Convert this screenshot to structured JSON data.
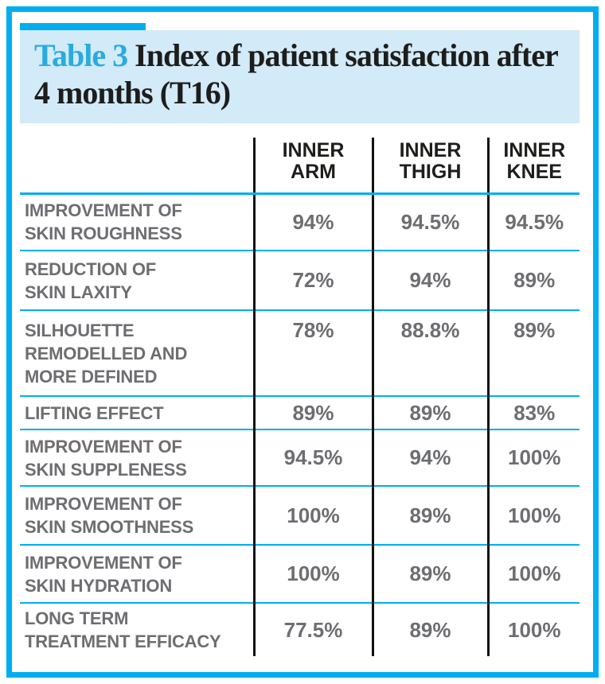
{
  "title": {
    "tag": "Table 3",
    "text": "Index of patient satisfaction after 4 months (T16)"
  },
  "colors": {
    "accent_cyan": "#00aeef",
    "title_text_cyan": "#29abe2",
    "title_background": "#d3eaf8",
    "header_text": "#1d1d1b",
    "body_text_gray": "#6d6e71",
    "column_rule_black": "#111111"
  },
  "table": {
    "columns": [
      "INNER\nARM",
      "INNER\nTHIGH",
      "INNER\nKNEE"
    ],
    "rows": [
      {
        "label": "IMPROVEMENT OF\nSKIN ROUGHNESS",
        "values": [
          "94%",
          "94.5%",
          "94.5%"
        ]
      },
      {
        "label": "REDUCTION OF\nSKIN LAXITY",
        "values": [
          "72%",
          "94%",
          "89%"
        ]
      },
      {
        "label": "SILHOUETTE\nREMODELLED AND\nMORE DEFINED",
        "values": [
          "78%",
          "88.8%",
          "89%"
        ]
      },
      {
        "label": "LIFTING EFFECT",
        "values": [
          "89%",
          "89%",
          "83%"
        ]
      },
      {
        "label": "IMPROVEMENT OF\nSKIN SUPPLENESS",
        "values": [
          "94.5%",
          "94%",
          "100%"
        ]
      },
      {
        "label": "IMPROVEMENT OF\nSKIN SMOOTHNESS",
        "values": [
          "100%",
          "89%",
          "100%"
        ]
      },
      {
        "label": "IMPROVEMENT OF\nSKIN HYDRATION",
        "values": [
          "100%",
          "89%",
          "100%"
        ]
      },
      {
        "label": "LONG TERM\nTREATMENT EFFICACY",
        "values": [
          "77.5%",
          "89%",
          "100%"
        ]
      }
    ]
  },
  "chart_data": {
    "type": "table",
    "title": "Table 3 Index of patient satisfaction after 4 months (T16)",
    "columns": [
      "",
      "INNER ARM",
      "INNER THIGH",
      "INNER KNEE"
    ],
    "rows": [
      [
        "IMPROVEMENT OF SKIN ROUGHNESS",
        "94%",
        "94.5%",
        "94.5%"
      ],
      [
        "REDUCTION OF SKIN LAXITY",
        "72%",
        "94%",
        "89%"
      ],
      [
        "SILHOUETTE REMODELLED AND MORE DEFINED",
        "78%",
        "88.8%",
        "89%"
      ],
      [
        "LIFTING EFFECT",
        "89%",
        "89%",
        "83%"
      ],
      [
        "IMPROVEMENT OF SKIN SUPPLENESS",
        "94.5%",
        "94%",
        "100%"
      ],
      [
        "IMPROVEMENT OF SKIN SMOOTHNESS",
        "100%",
        "89%",
        "100%"
      ],
      [
        "IMPROVEMENT OF SKIN HYDRATION",
        "100%",
        "89%",
        "100%"
      ],
      [
        "LONG TERM TREATMENT EFFICACY",
        "77.5%",
        "89%",
        "100%"
      ]
    ],
    "values_unit": "percent satisfaction",
    "notes": "cyan horizontal rules between rows, black vertical rules between columns"
  }
}
